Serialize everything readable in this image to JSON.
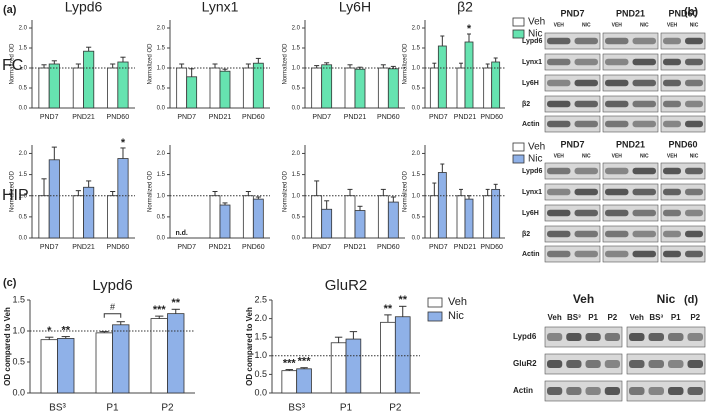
{
  "panel_labels": [
    "(a)",
    "(b)",
    "(c)",
    "(d)"
  ],
  "row_labels": [
    "FC",
    "HIP"
  ],
  "chart_data": [
    {
      "type": "bar",
      "title": "Lypd6",
      "ylabel": "Normalized OD",
      "categories": [
        "PND7",
        "PND21",
        "PND60"
      ],
      "ylim": [
        0,
        2.2
      ],
      "yticks": [
        {
          "value": 0,
          "label": "0.0"
        },
        {
          "value": 0.5,
          "label": "0.5"
        },
        {
          "value": 1,
          "label": "1.0"
        },
        {
          "value": 1.5,
          "label": "1.5"
        },
        {
          "value": 2,
          "label": "2.0"
        }
      ],
      "refline": 1,
      "series": [
        {
          "color": "#ffffff",
          "values": [
            1,
            1,
            1
          ],
          "errors": [
            0.08,
            0.1,
            0.1
          ]
        },
        {
          "color": "#66e3b0",
          "values": [
            1.1,
            1.42,
            1.15
          ],
          "errors": [
            0.08,
            0.1,
            0.12
          ]
        }
      ]
    },
    {
      "type": "bar",
      "title": "Lynx1",
      "ylabel": "Normalized OD",
      "categories": [
        "PND7",
        "PND21",
        "PND60"
      ],
      "ylim": [
        0,
        2.2
      ],
      "yticks": [
        {
          "value": 0,
          "label": "0.0"
        },
        {
          "value": 0.5,
          "label": "0.5"
        },
        {
          "value": 1,
          "label": "1.0"
        },
        {
          "value": 1.5,
          "label": "1.5"
        },
        {
          "value": 2,
          "label": "2.0"
        }
      ],
      "refline": 1,
      "series": [
        {
          "color": "#ffffff",
          "values": [
            1,
            1,
            1
          ],
          "errors": [
            0.1,
            0.1,
            0.1
          ]
        },
        {
          "color": "#66e3b0",
          "values": [
            0.78,
            0.92,
            1.12
          ],
          "errors": [
            0.2,
            0.05,
            0.12
          ]
        }
      ]
    },
    {
      "type": "bar",
      "title": "Ly6H",
      "ylabel": "Normalized OD",
      "categories": [
        "PND7",
        "PND21",
        "PND60"
      ],
      "ylim": [
        0,
        2.2
      ],
      "yticks": [
        {
          "value": 0,
          "label": "0.0"
        },
        {
          "value": 0.5,
          "label": "0.5"
        },
        {
          "value": 1,
          "label": "1.0"
        },
        {
          "value": 1.5,
          "label": "1.5"
        },
        {
          "value": 2,
          "label": "2.0"
        }
      ],
      "refline": 1,
      "series": [
        {
          "color": "#ffffff",
          "values": [
            1,
            1,
            1
          ],
          "errors": [
            0.06,
            0.08,
            0.08
          ]
        },
        {
          "color": "#66e3b0",
          "values": [
            1.08,
            0.97,
            0.98
          ],
          "errors": [
            0.05,
            0.05,
            0.06
          ]
        }
      ]
    },
    {
      "type": "bar",
      "title": "β2",
      "ylabel": "Normalized OD",
      "categories": [
        "PND7",
        "PND21",
        "PND60"
      ],
      "ylim": [
        0,
        2.2
      ],
      "yticks": [
        {
          "value": 0,
          "label": "0.0"
        },
        {
          "value": 0.5,
          "label": "0.5"
        },
        {
          "value": 1,
          "label": "1.0"
        },
        {
          "value": 1.5,
          "label": "1.5"
        },
        {
          "value": 2,
          "label": "2.0"
        }
      ],
      "refline": 1,
      "legend": "right",
      "series": [
        {
          "name": "Veh",
          "color": "#ffffff",
          "values": [
            1,
            1,
            1
          ],
          "errors": [
            0.12,
            0.12,
            0.1
          ]
        },
        {
          "name": "Nic",
          "color": "#66e3b0",
          "values": [
            1.55,
            1.65,
            1.15
          ],
          "errors": [
            0.25,
            0.2,
            0.1
          ],
          "annotations": [
            null,
            "*",
            null
          ]
        }
      ]
    },
    {
      "type": "bar",
      "ylabel": "Normalized OD",
      "categories": [
        "PND7",
        "PND21",
        "PND60"
      ],
      "ylim": [
        0,
        2.2
      ],
      "yticks": [
        {
          "value": 0,
          "label": "0.0"
        },
        {
          "value": 0.5,
          "label": "0.5"
        },
        {
          "value": 1,
          "label": "1.0"
        },
        {
          "value": 1.5,
          "label": "1.5"
        },
        {
          "value": 2,
          "label": "2.0"
        }
      ],
      "refline": 1,
      "series": [
        {
          "color": "#ffffff",
          "values": [
            1,
            1,
            1
          ],
          "errors": [
            0.4,
            0.12,
            0.1
          ]
        },
        {
          "color": "#8fb1e8",
          "values": [
            1.85,
            1.2,
            1.88
          ],
          "errors": [
            0.3,
            0.15,
            0.25
          ],
          "annotations": [
            null,
            null,
            "*"
          ]
        }
      ]
    },
    {
      "type": "bar",
      "ylabel": "Normalized OD",
      "categories": [
        "PND7",
        "PND21",
        "PND60"
      ],
      "ylim": [
        0,
        2.2
      ],
      "yticks": [
        {
          "value": 0,
          "label": "0.0"
        },
        {
          "value": 0.5,
          "label": "0.5"
        },
        {
          "value": 1,
          "label": "1.0"
        },
        {
          "value": 1.5,
          "label": "1.5"
        },
        {
          "value": 2,
          "label": "2.0"
        }
      ],
      "refline": 1,
      "series": [
        {
          "color": "#ffffff",
          "values": [
            null,
            1,
            1
          ],
          "errors": [
            null,
            0.1,
            0.1
          ],
          "annotations": [
            "n.d.",
            null,
            null
          ]
        },
        {
          "color": "#8fb1e8",
          "values": [
            null,
            0.78,
            0.92
          ],
          "errors": [
            null,
            0.05,
            0.05
          ]
        }
      ]
    },
    {
      "type": "bar",
      "ylabel": "Normalized OD",
      "categories": [
        "PND7",
        "PND21",
        "PND60"
      ],
      "ylim": [
        0,
        2.2
      ],
      "yticks": [
        {
          "value": 0,
          "label": "0.0"
        },
        {
          "value": 0.5,
          "label": "0.5"
        },
        {
          "value": 1,
          "label": "1.0"
        },
        {
          "value": 1.5,
          "label": "1.5"
        },
        {
          "value": 2,
          "label": "2.0"
        }
      ],
      "refline": 1,
      "series": [
        {
          "color": "#ffffff",
          "values": [
            1,
            1,
            1
          ],
          "errors": [
            0.35,
            0.15,
            0.15
          ]
        },
        {
          "color": "#8fb1e8",
          "values": [
            0.68,
            0.65,
            0.85
          ],
          "errors": [
            0.2,
            0.1,
            0.12
          ]
        }
      ]
    },
    {
      "type": "bar",
      "ylabel": "Normalized OD",
      "categories": [
        "PND7",
        "PND21",
        "PND60"
      ],
      "ylim": [
        0,
        2.2
      ],
      "yticks": [
        {
          "value": 0,
          "label": "0.0"
        },
        {
          "value": 0.5,
          "label": "0.5"
        },
        {
          "value": 1,
          "label": "1.0"
        },
        {
          "value": 1.5,
          "label": "1.5"
        },
        {
          "value": 2,
          "label": "2.0"
        }
      ],
      "refline": 1,
      "legend": "right",
      "series": [
        {
          "name": "Veh",
          "color": "#ffffff",
          "values": [
            1,
            1,
            1
          ],
          "errors": [
            0.3,
            0.15,
            0.15
          ]
        },
        {
          "name": "Nic",
          "color": "#8fb1e8",
          "values": [
            1.55,
            0.92,
            1.15
          ],
          "errors": [
            0.2,
            0.08,
            0.12
          ]
        }
      ]
    },
    {
      "type": "bar",
      "title": "Lypd6",
      "ylabel": "OD compared to Veh",
      "categories": [
        "BS³",
        "P1",
        "P2"
      ],
      "ylim": [
        0,
        1.5
      ],
      "yticks": [
        {
          "value": 0,
          "label": "0.0"
        },
        {
          "value": 0.5,
          "label": "0.5"
        },
        {
          "value": 1,
          "label": "1.0"
        },
        {
          "value": 1.5,
          "label": "1.5"
        }
      ],
      "refline": 1,
      "brackets": [
        {
          "category": "P1",
          "label": "#"
        }
      ],
      "series": [
        {
          "color": "#ffffff",
          "values": [
            0.86,
            0.97,
            1.2
          ],
          "errors": [
            0.04,
            0.02,
            0.04
          ],
          "annotations": [
            "*",
            null,
            "***"
          ]
        },
        {
          "color": "#8fb1e8",
          "values": [
            0.88,
            1.1,
            1.28
          ],
          "errors": [
            0.03,
            0.05,
            0.07
          ],
          "annotations": [
            "**",
            null,
            "**"
          ]
        }
      ]
    },
    {
      "type": "bar",
      "title": "GluR2",
      "ylabel": "OD compared to Veh",
      "categories": [
        "BS³",
        "P1",
        "P2"
      ],
      "ylim": [
        0,
        2.5
      ],
      "yticks": [
        {
          "value": 0,
          "label": "0.0"
        },
        {
          "value": 0.5,
          "label": "0.5"
        },
        {
          "value": 1,
          "label": "1.0"
        },
        {
          "value": 1.5,
          "label": "1.5"
        },
        {
          "value": 2,
          "label": "2.0"
        },
        {
          "value": 2.5,
          "label": "2.5"
        }
      ],
      "refline": 1,
      "legend": "right",
      "series": [
        {
          "name": "Veh",
          "color": "#ffffff",
          "values": [
            0.6,
            1.35,
            1.9
          ],
          "errors": [
            0.03,
            0.15,
            0.2
          ],
          "annotations": [
            "***",
            null,
            "**"
          ]
        },
        {
          "name": "Nic",
          "color": "#8fb1e8",
          "values": [
            0.65,
            1.45,
            2.05
          ],
          "errors": [
            0.03,
            0.2,
            0.28
          ],
          "annotations": [
            "***",
            null,
            "**"
          ]
        }
      ]
    }
  ],
  "blots": [
    {
      "groups": [
        "PND7",
        "PND21",
        "PND60"
      ],
      "lanes": [
        "VEH",
        "NIC"
      ],
      "rows": [
        "Lypd6",
        "Lynx1",
        "Ly6H",
        "β2",
        "Actin"
      ]
    },
    {
      "groups": [
        "PND7",
        "PND21",
        "PND60"
      ],
      "lanes": [
        "VEH",
        "NIC"
      ],
      "rows": [
        "Lypd6",
        "Lynx1",
        "Ly6H",
        "β2",
        "Actin"
      ]
    },
    {
      "groups": [
        "Veh",
        "Nic"
      ],
      "lanes": [
        "Veh",
        "BS³",
        "P1",
        "P2"
      ],
      "rows": [
        "Lypd6",
        "GluR2",
        "Actin"
      ]
    }
  ]
}
